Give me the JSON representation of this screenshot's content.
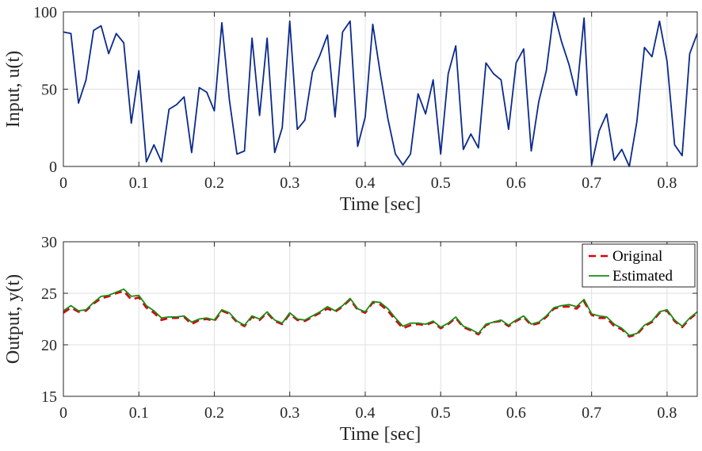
{
  "chart_data": [
    {
      "type": "line",
      "xlabel": "Time [sec]",
      "ylabel": "Input, u(t)",
      "xlim": [
        0,
        0.84
      ],
      "ylim": [
        0,
        100
      ],
      "xticks": [
        0,
        0.1,
        0.2,
        0.3,
        0.4,
        0.5,
        0.6,
        0.7,
        0.8
      ],
      "xtick_labels": [
        "0",
        "0.1",
        "0.2",
        "0.3",
        "0.4",
        "0.5",
        "0.6",
        "0.7",
        "0.8"
      ],
      "yticks": [
        0,
        50,
        100
      ],
      "ytick_labels": [
        "0",
        "50",
        "100"
      ],
      "grid": true,
      "series": [
        {
          "name": "u(t)",
          "color": "#0b2a8c",
          "style": "solid",
          "x": [
            0,
            0.01,
            0.02,
            0.03,
            0.04,
            0.05,
            0.06,
            0.07,
            0.08,
            0.09,
            0.1,
            0.11,
            0.12,
            0.13,
            0.14,
            0.15,
            0.16,
            0.17,
            0.18,
            0.19,
            0.2,
            0.21,
            0.22,
            0.23,
            0.24,
            0.25,
            0.26,
            0.27,
            0.28,
            0.29,
            0.3,
            0.31,
            0.32,
            0.33,
            0.34,
            0.35,
            0.36,
            0.37,
            0.38,
            0.39,
            0.4,
            0.41,
            0.42,
            0.43,
            0.44,
            0.45,
            0.46,
            0.47,
            0.48,
            0.49,
            0.5,
            0.51,
            0.52,
            0.53,
            0.54,
            0.55,
            0.56,
            0.57,
            0.58,
            0.59,
            0.6,
            0.61,
            0.62,
            0.63,
            0.64,
            0.65,
            0.66,
            0.67,
            0.68,
            0.69,
            0.7,
            0.71,
            0.72,
            0.73,
            0.74,
            0.75,
            0.76,
            0.77,
            0.78,
            0.79,
            0.8,
            0.81,
            0.82,
            0.83,
            0.84
          ],
          "values": [
            87,
            86,
            41,
            56,
            88,
            91,
            73,
            86,
            80,
            28,
            62,
            3,
            14,
            3,
            37,
            40,
            45,
            9,
            51,
            48,
            36,
            93,
            43,
            8,
            10,
            83,
            33,
            83,
            9,
            25,
            94,
            24,
            30,
            61,
            72,
            85,
            32,
            87,
            94,
            13,
            32,
            92,
            60,
            31,
            8,
            1,
            8,
            47,
            34,
            56,
            8,
            60,
            78,
            11,
            21,
            12,
            67,
            60,
            56,
            24,
            67,
            76,
            10,
            42,
            62,
            100,
            81,
            66,
            46,
            96,
            1,
            23,
            34,
            4,
            11,
            0,
            29,
            77,
            71,
            94,
            68,
            14,
            7,
            73,
            86
          ]
        }
      ]
    },
    {
      "type": "line",
      "xlabel": "Time [sec]",
      "ylabel": "Output, y(t)",
      "xlim": [
        0,
        0.84
      ],
      "ylim": [
        15,
        30
      ],
      "xticks": [
        0,
        0.1,
        0.2,
        0.3,
        0.4,
        0.5,
        0.6,
        0.7,
        0.8
      ],
      "xtick_labels": [
        "0",
        "0.1",
        "0.2",
        "0.3",
        "0.4",
        "0.5",
        "0.6",
        "0.7",
        "0.8"
      ],
      "yticks": [
        15,
        20,
        25,
        30
      ],
      "ytick_labels": [
        "15",
        "20",
        "25",
        "30"
      ],
      "grid": true,
      "legend": "top-right",
      "series": [
        {
          "name": "Original",
          "color": "#d9000f",
          "style": "dashed",
          "x": [
            0,
            0.01,
            0.02,
            0.03,
            0.04,
            0.05,
            0.06,
            0.07,
            0.08,
            0.09,
            0.1,
            0.11,
            0.12,
            0.13,
            0.14,
            0.15,
            0.16,
            0.17,
            0.18,
            0.19,
            0.2,
            0.21,
            0.22,
            0.23,
            0.24,
            0.25,
            0.26,
            0.27,
            0.28,
            0.29,
            0.3,
            0.31,
            0.32,
            0.33,
            0.34,
            0.35,
            0.36,
            0.37,
            0.38,
            0.39,
            0.4,
            0.41,
            0.42,
            0.43,
            0.44,
            0.45,
            0.46,
            0.47,
            0.48,
            0.49,
            0.5,
            0.51,
            0.52,
            0.53,
            0.54,
            0.55,
            0.56,
            0.57,
            0.58,
            0.59,
            0.6,
            0.61,
            0.62,
            0.63,
            0.64,
            0.65,
            0.66,
            0.67,
            0.68,
            0.69,
            0.7,
            0.71,
            0.72,
            0.73,
            0.74,
            0.75,
            0.76,
            0.77,
            0.78,
            0.79,
            0.8,
            0.81,
            0.82,
            0.83,
            0.84
          ],
          "values": [
            23.1,
            23.6,
            23.2,
            23.3,
            24.0,
            24.5,
            24.7,
            25.0,
            25.2,
            24.4,
            24.6,
            23.6,
            23.1,
            22.4,
            22.6,
            22.6,
            22.7,
            22.0,
            22.4,
            22.5,
            22.3,
            23.3,
            23.0,
            22.2,
            21.8,
            22.7,
            22.4,
            23.1,
            22.3,
            22.0,
            23.0,
            22.4,
            22.3,
            22.7,
            23.1,
            23.5,
            23.2,
            23.7,
            24.4,
            23.4,
            23.1,
            24.1,
            23.9,
            23.3,
            22.4,
            21.6,
            21.9,
            22.0,
            21.9,
            22.2,
            21.6,
            22.0,
            22.6,
            21.7,
            21.4,
            21.0,
            21.9,
            22.2,
            22.3,
            21.8,
            22.3,
            22.7,
            21.9,
            22.1,
            22.7,
            23.5,
            23.7,
            23.7,
            23.5,
            24.2,
            22.9,
            22.6,
            22.6,
            21.8,
            21.5,
            20.8,
            21.0,
            21.8,
            22.2,
            23.1,
            23.3,
            22.3,
            21.7,
            22.5,
            23.1
          ]
        },
        {
          "name": "Estimated",
          "color": "#1a8a14",
          "style": "solid",
          "x": [
            0,
            0.01,
            0.02,
            0.03,
            0.04,
            0.05,
            0.06,
            0.07,
            0.08,
            0.09,
            0.1,
            0.11,
            0.12,
            0.13,
            0.14,
            0.15,
            0.16,
            0.17,
            0.18,
            0.19,
            0.2,
            0.21,
            0.22,
            0.23,
            0.24,
            0.25,
            0.26,
            0.27,
            0.28,
            0.29,
            0.3,
            0.31,
            0.32,
            0.33,
            0.34,
            0.35,
            0.36,
            0.37,
            0.38,
            0.39,
            0.4,
            0.41,
            0.42,
            0.43,
            0.44,
            0.45,
            0.46,
            0.47,
            0.48,
            0.49,
            0.5,
            0.51,
            0.52,
            0.53,
            0.54,
            0.55,
            0.56,
            0.57,
            0.58,
            0.59,
            0.6,
            0.61,
            0.62,
            0.63,
            0.64,
            0.65,
            0.66,
            0.67,
            0.68,
            0.69,
            0.7,
            0.71,
            0.72,
            0.73,
            0.74,
            0.75,
            0.76,
            0.77,
            0.78,
            0.79,
            0.8,
            0.81,
            0.82,
            0.83,
            0.84
          ],
          "values": [
            23.3,
            23.8,
            23.3,
            23.4,
            24.1,
            24.7,
            24.8,
            25.1,
            25.4,
            24.7,
            24.8,
            23.8,
            23.3,
            22.6,
            22.7,
            22.7,
            22.8,
            22.2,
            22.5,
            22.6,
            22.4,
            23.4,
            23.1,
            22.3,
            21.9,
            22.8,
            22.5,
            23.2,
            22.4,
            22.1,
            23.1,
            22.5,
            22.4,
            22.8,
            23.2,
            23.7,
            23.3,
            23.8,
            24.5,
            23.5,
            23.2,
            24.2,
            24.1,
            23.5,
            22.6,
            21.8,
            22.1,
            22.1,
            22.0,
            22.3,
            21.7,
            22.1,
            22.7,
            21.8,
            21.5,
            21.1,
            22.0,
            22.2,
            22.4,
            21.9,
            22.4,
            22.8,
            22.0,
            22.2,
            22.8,
            23.6,
            23.8,
            23.9,
            23.7,
            24.4,
            23.0,
            22.8,
            22.7,
            22.0,
            21.6,
            20.9,
            21.1,
            21.9,
            22.3,
            23.2,
            23.4,
            22.4,
            21.8,
            22.6,
            23.2
          ]
        }
      ]
    }
  ]
}
